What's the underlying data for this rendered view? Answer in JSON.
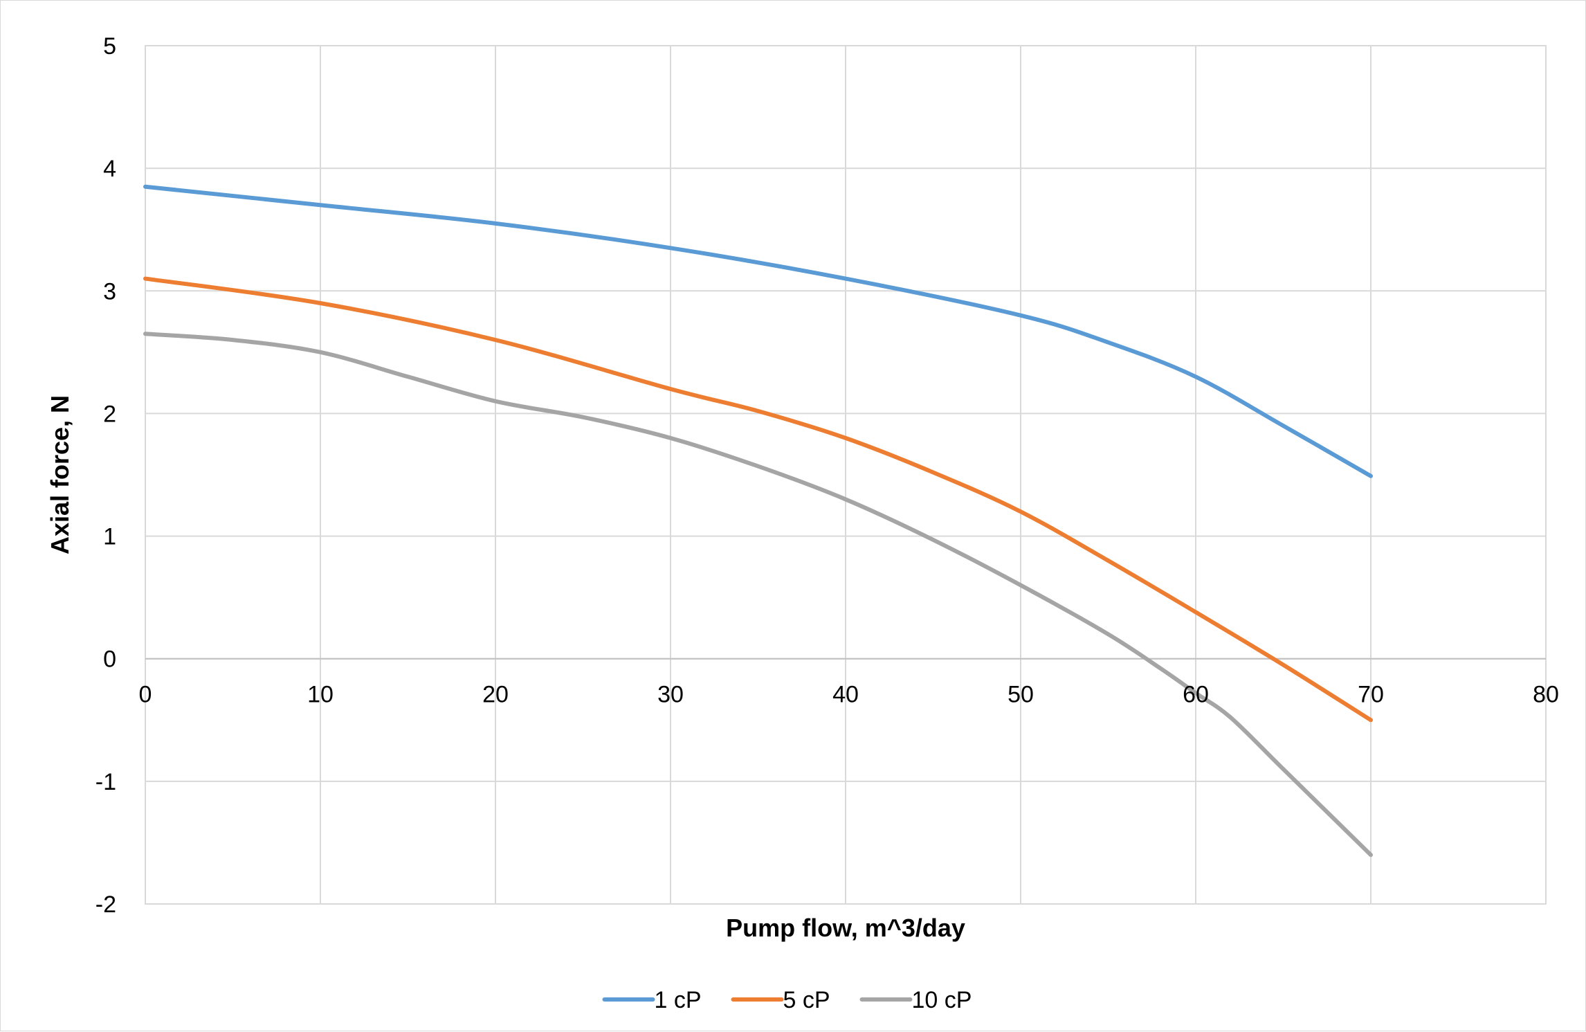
{
  "chart_data": {
    "type": "line",
    "title": "",
    "xlabel": "Pump flow, m^3/day",
    "ylabel": "Axial force, N",
    "xlim": [
      0,
      80
    ],
    "ylim": [
      -2,
      5
    ],
    "x_ticks": [
      0,
      10,
      20,
      30,
      40,
      50,
      60,
      70,
      80
    ],
    "y_ticks": [
      -2,
      -1,
      0,
      1,
      2,
      3,
      4,
      5
    ],
    "grid": true,
    "legend_position": "bottom",
    "series": [
      {
        "name": "1 cP",
        "color": "#5B9BD5",
        "x": [
          0,
          10,
          20,
          30,
          40,
          50,
          55,
          60,
          65,
          70
        ],
        "y": [
          3.85,
          3.7,
          3.55,
          3.35,
          3.1,
          2.8,
          2.58,
          2.3,
          1.9,
          1.49
        ]
      },
      {
        "name": "5 cP",
        "color": "#ED7D31",
        "x": [
          0,
          10,
          20,
          30,
          35,
          40,
          45,
          50,
          55,
          60,
          65,
          70
        ],
        "y": [
          3.1,
          2.9,
          2.6,
          2.2,
          2.02,
          1.8,
          1.52,
          1.2,
          0.8,
          0.38,
          -0.05,
          -0.5
        ]
      },
      {
        "name": "10 cP",
        "color": "#A5A5A5",
        "x": [
          0,
          5,
          10,
          15,
          20,
          25,
          30,
          35,
          40,
          45,
          50,
          55,
          58,
          60,
          62,
          65,
          70
        ],
        "y": [
          2.65,
          2.6,
          2.5,
          2.3,
          2.1,
          1.97,
          1.8,
          1.57,
          1.3,
          0.97,
          0.6,
          0.2,
          -0.08,
          -0.28,
          -0.48,
          -0.9,
          -1.6
        ]
      }
    ]
  }
}
